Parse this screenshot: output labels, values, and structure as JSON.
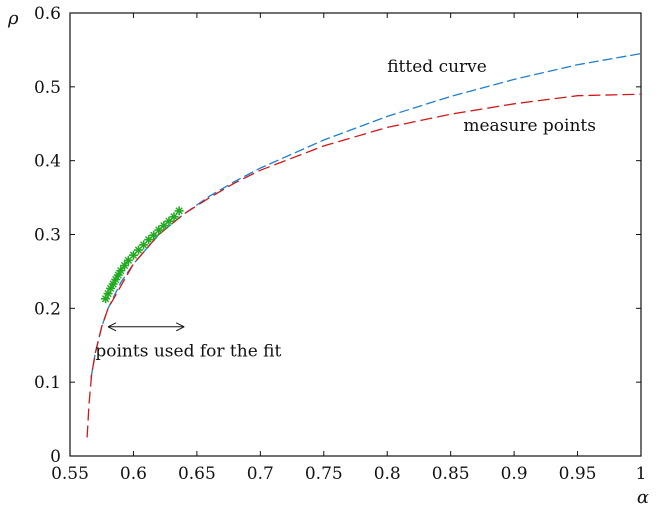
{
  "chart_data": {
    "type": "line",
    "xlabel": "α",
    "ylabel": "ρ",
    "xlim": [
      0.55,
      1.0
    ],
    "ylim": [
      0,
      0.6
    ],
    "x_ticks": [
      0.55,
      0.6,
      0.65,
      0.7,
      0.75,
      0.8,
      0.85,
      0.9,
      0.95,
      1.0
    ],
    "x_tick_labels": [
      "0.55",
      "0.6",
      "0.65",
      "0.7",
      "0.75",
      "0.8",
      "0.85",
      "0.9",
      "0.95",
      "1"
    ],
    "y_ticks": [
      0,
      0.1,
      0.2,
      0.3,
      0.4,
      0.5,
      0.6
    ],
    "y_tick_labels": [
      "0",
      "0.1",
      "0.2",
      "0.3",
      "0.4",
      "0.5",
      "0.6"
    ],
    "grid": false,
    "series": [
      {
        "name": "fitted curve",
        "color": "#1f7fd0",
        "style": "dashed",
        "x": [
          0.5665,
          0.57,
          0.575,
          0.58,
          0.59,
          0.6,
          0.62,
          0.64,
          0.66,
          0.68,
          0.7,
          0.75,
          0.8,
          0.85,
          0.9,
          0.95,
          1.0
        ],
        "y": [
          0.105,
          0.14,
          0.175,
          0.2,
          0.235,
          0.26,
          0.3,
          0.328,
          0.352,
          0.372,
          0.39,
          0.428,
          0.46,
          0.487,
          0.51,
          0.53,
          0.545
        ]
      },
      {
        "name": "measure points",
        "color": "#d01818",
        "style": "dashed",
        "x": [
          0.5635,
          0.565,
          0.567,
          0.57,
          0.575,
          0.58,
          0.6,
          0.62,
          0.64,
          0.66,
          0.68,
          0.7,
          0.75,
          0.8,
          0.85,
          0.9,
          0.95,
          1.0
        ],
        "y": [
          0.025,
          0.07,
          0.11,
          0.14,
          0.175,
          0.2,
          0.26,
          0.3,
          0.328,
          0.35,
          0.37,
          0.387,
          0.42,
          0.445,
          0.463,
          0.477,
          0.488,
          0.49
        ]
      },
      {
        "name": "points used for the fit",
        "color": "#22aa22",
        "style": "markers",
        "x": [
          0.578,
          0.58,
          0.582,
          0.584,
          0.586,
          0.588,
          0.59,
          0.593,
          0.596,
          0.6,
          0.604,
          0.608,
          0.612,
          0.616,
          0.62,
          0.624,
          0.628,
          0.632,
          0.636
        ],
        "y": [
          0.213,
          0.22,
          0.227,
          0.233,
          0.239,
          0.245,
          0.251,
          0.258,
          0.265,
          0.272,
          0.279,
          0.286,
          0.293,
          0.299,
          0.306,
          0.312,
          0.318,
          0.324,
          0.332
        ]
      }
    ],
    "annotations": [
      {
        "id": "fitted",
        "text": "fitted curve",
        "x": 0.8,
        "y": 0.52
      },
      {
        "id": "measure",
        "text": "measure points",
        "x": 0.86,
        "y": 0.44
      },
      {
        "id": "fitrange",
        "text": "points used for the fit",
        "x": 0.57,
        "y": 0.135
      }
    ],
    "range_arrow": {
      "x_start": 0.58,
      "x_end": 0.64,
      "y": 0.175
    }
  }
}
